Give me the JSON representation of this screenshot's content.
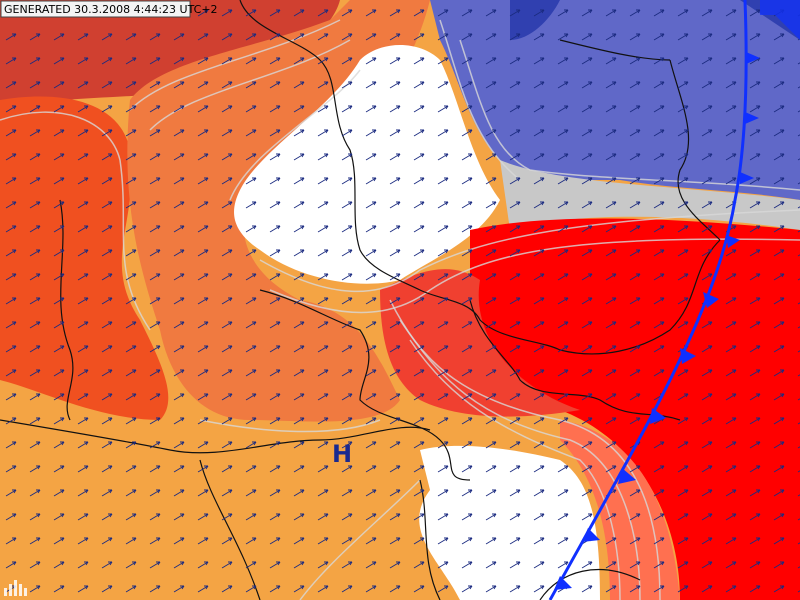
{
  "header": {
    "timestamp": "GENERATED 30.3.2008 4:44:23 UTC+2"
  },
  "labels": {
    "pressure_center": "H"
  }
}
